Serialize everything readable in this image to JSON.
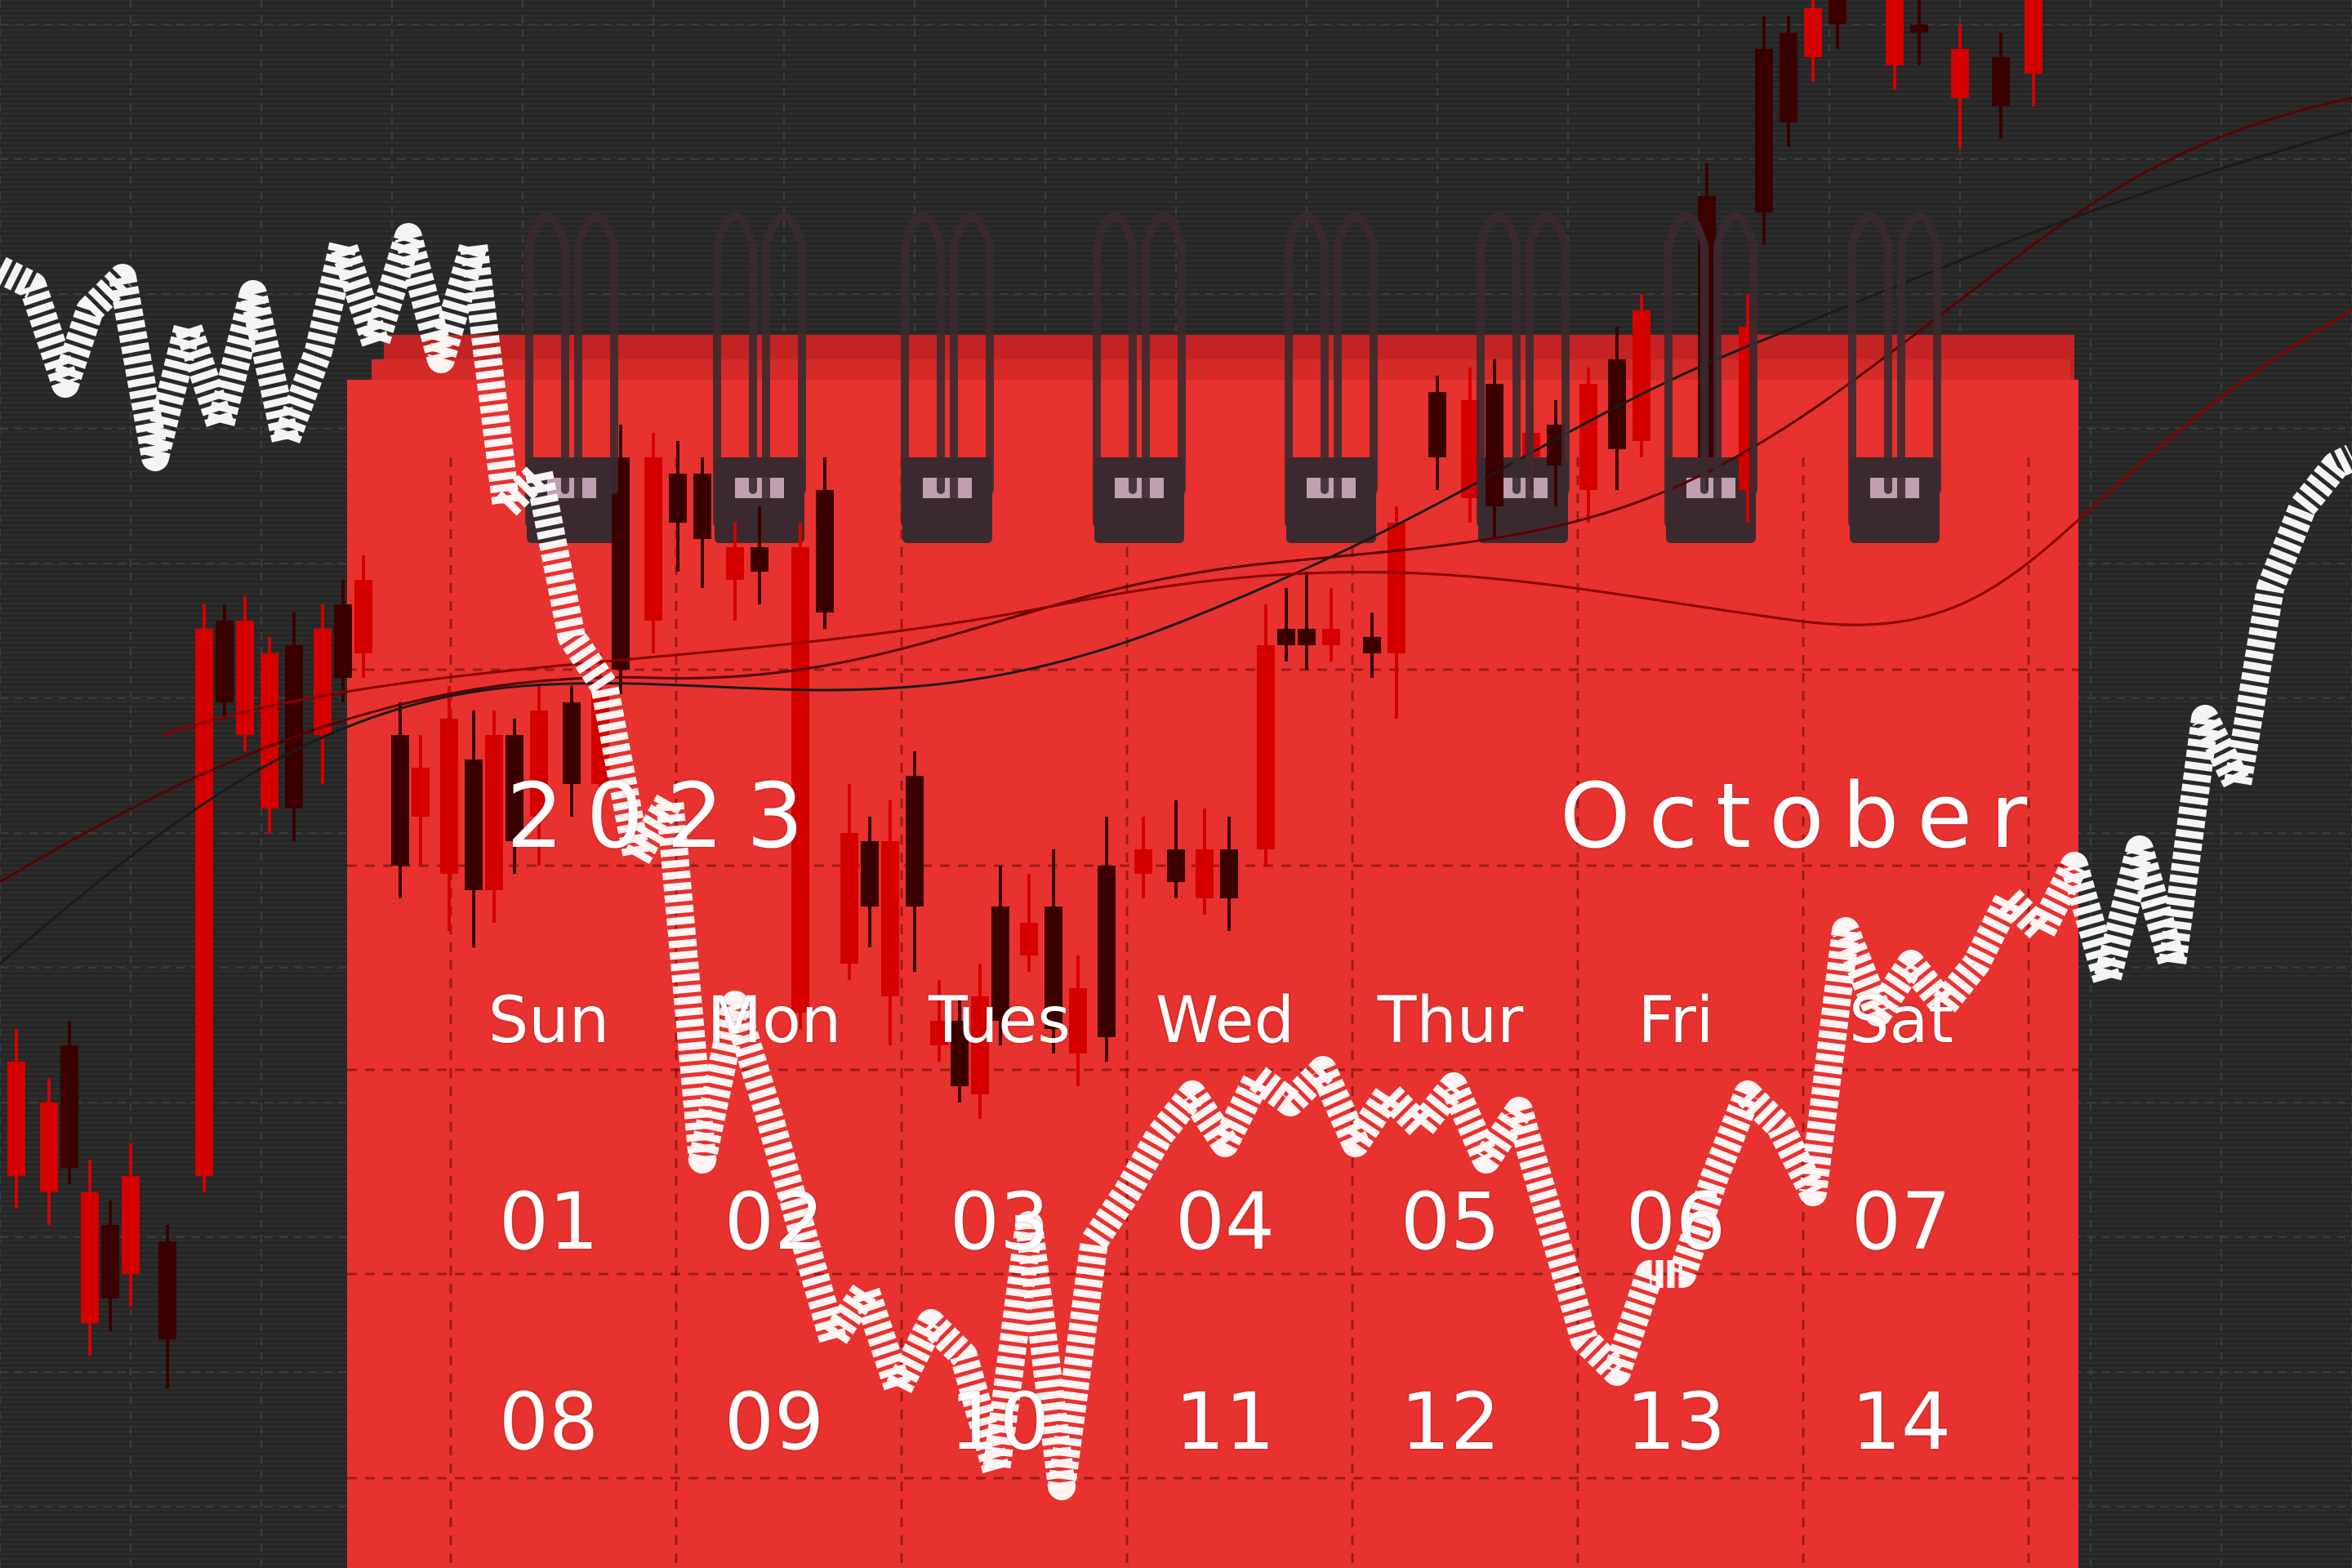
{
  "calendar": {
    "year": "2023",
    "month": "October",
    "weekdays": [
      "Sun",
      "Mon",
      "Tues",
      "Wed",
      "Thur",
      "Fri",
      "Sat"
    ],
    "week1": [
      "01",
      "02",
      "03",
      "04",
      "05",
      "06",
      "07"
    ],
    "week2": [
      "08",
      "09",
      "10",
      "11",
      "12",
      "13",
      "14"
    ]
  },
  "colors": {
    "background": "#262626",
    "calendar_red": "#e8322f",
    "ring": "#3b2a30",
    "trend_line": "#ffffff",
    "candle_red": "#d40000",
    "candle_dark": "#3a0000"
  }
}
